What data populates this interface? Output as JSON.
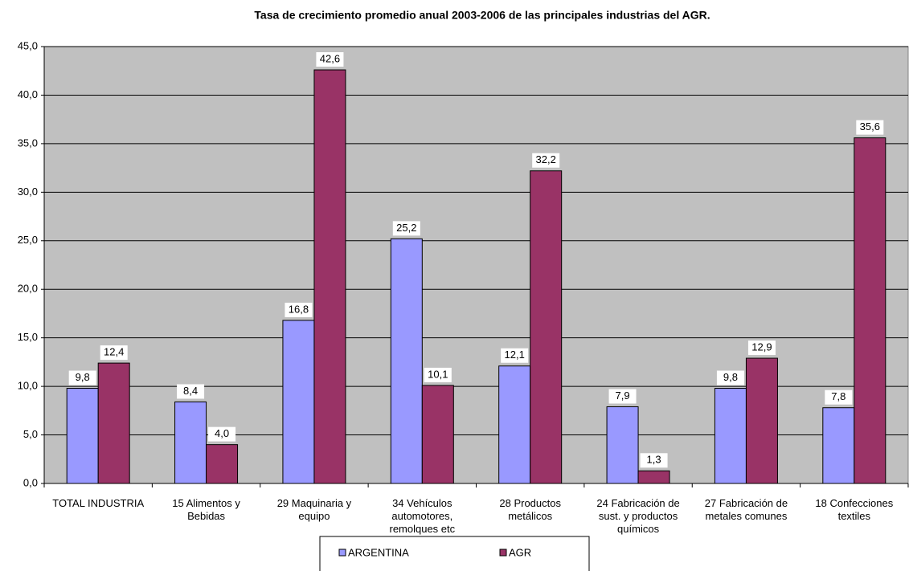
{
  "chart_data": {
    "type": "bar",
    "title": "Tasa de crecimiento promedio anual 2003-2006 de las principales industrias del AGR.",
    "categories": [
      "TOTAL INDUSTRIA",
      "15 Alimentos y Bebidas",
      "29 Maquinaria y equipo",
      "34 Vehículos automotores, remolques etc",
      "28 Productos metálicos",
      "24 Fabricación de sust. y productos químicos",
      "27 Fabricación de metales comunes",
      "18 Confecciones textiles"
    ],
    "series": [
      {
        "name": "ARGENTINA",
        "color": "#9999ff",
        "values": [
          9.8,
          8.4,
          16.8,
          25.2,
          12.1,
          7.9,
          9.8,
          7.8
        ],
        "value_labels": [
          "9,8",
          "8,4",
          "16,8",
          "25,2",
          "12,1",
          "7,9",
          "9,8",
          "7,8"
        ]
      },
      {
        "name": "AGR",
        "color": "#993366",
        "values": [
          12.4,
          4.0,
          42.6,
          10.1,
          32.2,
          1.3,
          12.9,
          35.6
        ],
        "value_labels": [
          "12,4",
          "4,0",
          "42,6",
          "10,1",
          "32,2",
          "1,3",
          "12,9",
          "35,6"
        ]
      }
    ],
    "ylim": [
      0,
      45
    ],
    "yticks": [
      {
        "value": 0,
        "label": "0,0"
      },
      {
        "value": 5,
        "label": "5,0"
      },
      {
        "value": 10,
        "label": "10,0"
      },
      {
        "value": 15,
        "label": "15,0"
      },
      {
        "value": 20,
        "label": "20,0"
      },
      {
        "value": 25,
        "label": "25,0"
      },
      {
        "value": 30,
        "label": "30,0"
      },
      {
        "value": 35,
        "label": "35,0"
      },
      {
        "value": 40,
        "label": "40,0"
      },
      {
        "value": 45,
        "label": "45,0"
      }
    ],
    "grid": true,
    "legend": "bottom",
    "plot_background": "#c0c0c0"
  }
}
